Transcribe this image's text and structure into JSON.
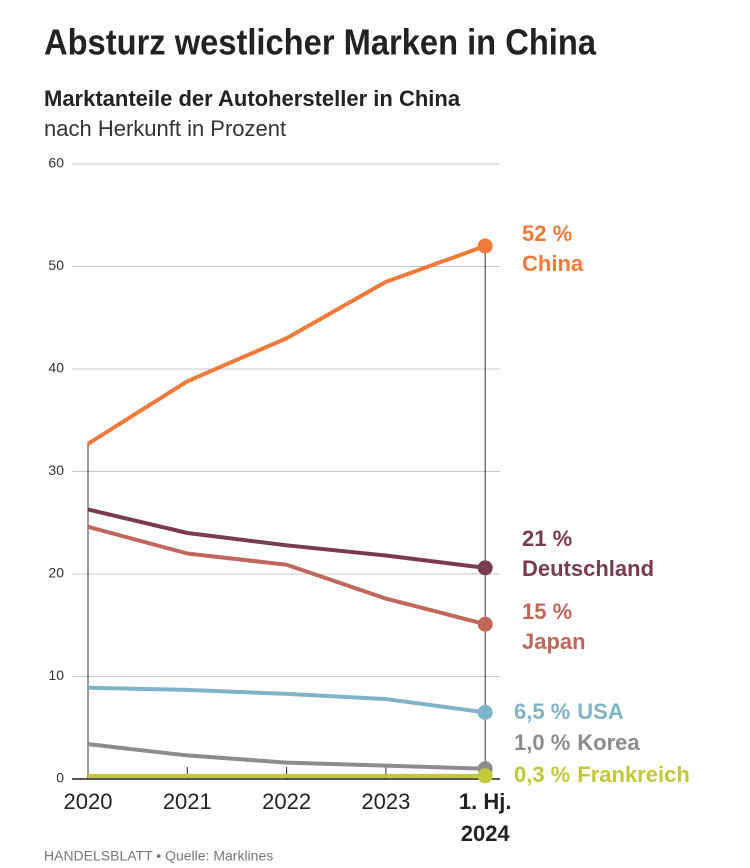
{
  "chart_data": {
    "type": "line",
    "title": "Absturz westlicher Marken in China",
    "subtitle": "Marktanteile der Autohersteller in China",
    "unit_note": "nach Herkunft in Prozent",
    "source": "HANDELSBLATT • Quelle: Marklines",
    "categories": [
      "2020",
      "2021",
      "2022",
      "2023",
      "1. Hj. 2024"
    ],
    "ylim": [
      0,
      60
    ],
    "yticks": [
      0,
      10,
      20,
      30,
      40,
      50,
      60
    ],
    "grid": true,
    "series": [
      {
        "name": "China",
        "color": "#f07a3a",
        "values": [
          32.7,
          38.8,
          43.0,
          48.5,
          52
        ],
        "value_labels": [
          null,
          null,
          null,
          null,
          "52 %"
        ]
      },
      {
        "name": "Deutschland",
        "color": "#7a3b52",
        "values": [
          26.3,
          24.0,
          22.8,
          21.8,
          20.6
        ],
        "value_labels": [
          null,
          null,
          null,
          null,
          "21 %"
        ]
      },
      {
        "name": "Japan",
        "color": "#c0675a",
        "values": [
          24.6,
          22.0,
          20.9,
          17.6,
          15.1
        ],
        "value_labels": [
          null,
          null,
          null,
          null,
          "15 %"
        ]
      },
      {
        "name": "USA",
        "color": "#7fb3c8",
        "values": [
          8.9,
          8.7,
          8.3,
          7.8,
          6.5
        ],
        "value_labels": [
          null,
          null,
          null,
          null,
          "6,5 %"
        ]
      },
      {
        "name": "Korea",
        "color": "#8c8c8c",
        "values": [
          3.4,
          2.3,
          1.6,
          1.3,
          1.0
        ],
        "value_labels": [
          null,
          null,
          null,
          null,
          "1,0 %"
        ]
      },
      {
        "name": "Frankreich",
        "color": "#c2c83a",
        "values": [
          0.3,
          0.3,
          0.3,
          0.3,
          0.3
        ],
        "value_labels": [
          null,
          null,
          null,
          null,
          "0,3 %"
        ]
      }
    ]
  }
}
